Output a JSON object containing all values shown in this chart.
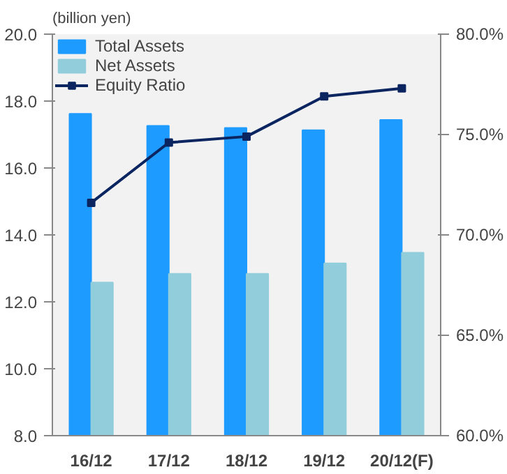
{
  "chart_data": {
    "type": "bar",
    "ylabel": "(billion yen)",
    "categories": [
      "16/12",
      "17/12",
      "18/12",
      "19/12",
      "20/12(F)"
    ],
    "series": [
      {
        "name": "Total Assets",
        "color": "#1e9bff",
        "values": [
          17.62,
          17.26,
          17.2,
          17.13,
          17.44
        ]
      },
      {
        "name": "Net Assets",
        "color": "#92cddc",
        "values": [
          12.58,
          12.84,
          12.84,
          13.15,
          13.47
        ]
      },
      {
        "name": "Equity Ratio",
        "type": "line",
        "axis": "y2",
        "color": "#0b2560",
        "marker": "square",
        "values": [
          71.6,
          74.6,
          74.9,
          76.9,
          77.3
        ]
      }
    ],
    "ylim": [
      8,
      20
    ],
    "yticks": [
      {
        "value": 8,
        "label": "8.0"
      },
      {
        "value": 10,
        "label": "10.0"
      },
      {
        "value": 12,
        "label": "12.0"
      },
      {
        "value": 14,
        "label": "14.0"
      },
      {
        "value": 16,
        "label": "16.0"
      },
      {
        "value": 18,
        "label": "18.0"
      },
      {
        "value": 20,
        "label": "20.0"
      }
    ],
    "y2lim": [
      60,
      80
    ],
    "y2ticks": [
      {
        "value": 60,
        "label": "60.0%"
      },
      {
        "value": 65,
        "label": "65.0%"
      },
      {
        "value": 70,
        "label": "70.0%"
      },
      {
        "value": 75,
        "label": "75.0%"
      },
      {
        "value": 80,
        "label": "80.0%"
      }
    ],
    "grid": false,
    "legend": "top left"
  }
}
